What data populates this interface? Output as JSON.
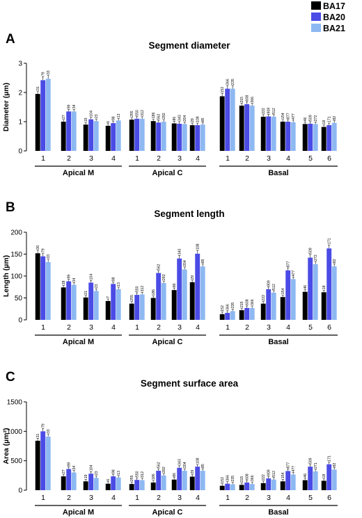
{
  "legend": [
    {
      "name": "BA17",
      "color": "#000000"
    },
    {
      "name": "BA20",
      "color": "#4B4BE6"
    },
    {
      "name": "BA21",
      "color": "#8DB8F2"
    }
  ],
  "chart_data": [
    {
      "panel": "A",
      "type": "bar",
      "title": "Segment diameter",
      "ylabel": "Diameter (µm)",
      "ylim": [
        0,
        3
      ],
      "yticks": [
        "0",
        "1",
        "2",
        "3"
      ],
      "series_names": [
        "BA17",
        "BA20",
        "BA21"
      ],
      "groups": [
        {
          "name": "Apical M",
          "categories": [
            "1",
            "2",
            "3",
            "4"
          ],
          "values": [
            [
              1.95,
              2.42,
              2.47
            ],
            [
              1.0,
              1.35,
              1.35
            ],
            [
              0.9,
              1.08,
              1.02
            ],
            [
              0.86,
              0.95,
              1.04
            ]
          ],
          "n": [
            [
              "31",
              "79",
              "33"
            ],
            [
              "27",
              "99",
              "34"
            ],
            [
              "19",
              "104",
              "23"
            ],
            [
              "6",
              "98",
              "13"
            ]
          ]
        },
        {
          "name": "Apical C",
          "categories": [
            "1",
            "2",
            "3",
            "4"
          ],
          "values": [
            [
              1.07,
              1.1,
              1.1
            ],
            [
              1.02,
              0.97,
              1.0
            ],
            [
              0.94,
              0.93,
              0.92
            ],
            [
              0.88,
              0.88,
              0.9
            ]
          ],
          "n": [
            [
              "255",
              "550",
              "312"
            ],
            [
              "186",
              "562",
              "292"
            ],
            [
              "86",
              "343",
              "204"
            ],
            [
              "29",
              "108",
              "85"
            ]
          ]
        },
        {
          "name": "Basal",
          "categories": [
            "1",
            "2",
            "3",
            "4",
            "5",
            "6"
          ],
          "values": [
            [
              1.87,
              2.13,
              2.13
            ],
            [
              1.55,
              1.6,
              1.55
            ],
            [
              1.17,
              1.18,
              1.17
            ],
            [
              1.0,
              1.0,
              0.98
            ],
            [
              0.92,
              0.93,
              0.92
            ],
            [
              0.82,
              0.88,
              0.96
            ]
          ],
          "n": [
            [
              "152",
              "366",
              "235"
            ],
            [
              "215",
              "608",
              "366"
            ],
            [
              "222",
              "909",
              "512"
            ],
            [
              "154",
              "877",
              "477"
            ],
            [
              "46",
              "509",
              "272"
            ],
            [
              "18",
              "171",
              "82"
            ]
          ]
        }
      ]
    },
    {
      "panel": "B",
      "type": "bar",
      "title": "Segment length",
      "ylabel": "Length (µm)",
      "ylim": [
        0,
        200
      ],
      "yticks": [
        "0",
        "50",
        "100",
        "150",
        "200"
      ],
      "series_names": [
        "BA17",
        "BA20",
        "BA21"
      ],
      "groups": [
        {
          "name": "Apical M",
          "categories": [
            "1",
            "2",
            "3",
            "4"
          ],
          "values": [
            [
              152,
              145,
              132
            ],
            [
              74,
              88,
              80
            ],
            [
              51,
              85,
              66
            ],
            [
              43,
              82,
              70
            ]
          ],
          "n": [
            [
              "30",
              "79",
              "33"
            ],
            [
              "28",
              "99",
              "34"
            ],
            [
              "21",
              "104",
              "23"
            ],
            [
              "7",
              "98",
              "13"
            ]
          ]
        },
        {
          "name": "Apical C",
          "categories": [
            "1",
            "2",
            "3",
            "4"
          ],
          "values": [
            [
              37,
              57,
              58
            ],
            [
              50,
              107,
              84
            ],
            [
              68,
              140,
              115
            ],
            [
              86,
              151,
              122
            ]
          ],
          "n": [
            [
              "255",
              "550",
              "312"
            ],
            [
              "186",
              "562",
              "292"
            ],
            [
              "86",
              "343",
              "204"
            ],
            [
              "29",
              "108",
              "85"
            ]
          ]
        },
        {
          "name": "Basal",
          "categories": [
            "1",
            "2",
            "3",
            "4",
            "5",
            "6"
          ],
          "values": [
            [
              13,
              16,
              20
            ],
            [
              22,
              27,
              27
            ],
            [
              37,
              70,
              62
            ],
            [
              52,
              113,
              93
            ],
            [
              64,
              142,
              127
            ],
            [
              63,
              163,
              122
            ]
          ],
          "n": [
            [
              "152",
              "366",
              "235"
            ],
            [
              "215",
              "608",
              "366"
            ],
            [
              "222",
              "909",
              "512"
            ],
            [
              "154",
              "877",
              "477"
            ],
            [
              "46",
              "509",
              "272"
            ],
            [
              "18",
              "171",
              "82"
            ]
          ]
        }
      ]
    },
    {
      "panel": "C",
      "type": "bar",
      "title": "Segment surface area",
      "ylabel": "Area (µm²)",
      "ylim": [
        0,
        1500
      ],
      "yticks": [
        "0",
        "500",
        "1000",
        "1500"
      ],
      "series_names": [
        "BA17",
        "BA20",
        "BA21"
      ],
      "groups": [
        {
          "name": "Apical M",
          "categories": [
            "1",
            "2",
            "3",
            "4"
          ],
          "values": [
            [
              840,
              1000,
              910
            ],
            [
              235,
              360,
              300
            ],
            [
              150,
              280,
              210
            ],
            [
              110,
              235,
              215
            ]
          ],
          "n": [
            [
              "31",
              "79",
              "33"
            ],
            [
              "27",
              "99",
              "34"
            ],
            [
              "19",
              "104",
              "23"
            ],
            [
              "6",
              "98",
              "13"
            ]
          ]
        },
        {
          "name": "Apical C",
          "categories": [
            "1",
            "2",
            "3",
            "4"
          ],
          "values": [
            [
              105,
              175,
              170
            ],
            [
              130,
              330,
              250
            ],
            [
              180,
              380,
              330
            ],
            [
              230,
              400,
              330
            ]
          ],
          "n": [
            [
              "255",
              "550",
              "312"
            ],
            [
              "186",
              "562",
              "292"
            ],
            [
              "86",
              "343",
              "204"
            ],
            [
              "29",
              "108",
              "85"
            ]
          ]
        },
        {
          "name": "Basal",
          "categories": [
            "1",
            "2",
            "3",
            "4",
            "5",
            "6"
          ],
          "values": [
            [
              75,
              110,
              100
            ],
            [
              90,
              130,
              105
            ],
            [
              120,
              200,
              180
            ],
            [
              150,
              325,
              265
            ],
            [
              170,
              400,
              320
            ],
            [
              160,
              440,
              350
            ]
          ],
          "n": [
            [
              "152",
              "366",
              "235"
            ],
            [
              "215",
              "608",
              "366"
            ],
            [
              "222",
              "909",
              "512"
            ],
            [
              "154",
              "877",
              "477"
            ],
            [
              "46",
              "509",
              "271"
            ],
            [
              "18",
              "171",
              "82"
            ]
          ]
        }
      ]
    }
  ]
}
